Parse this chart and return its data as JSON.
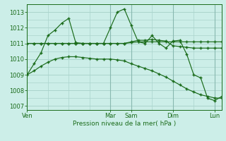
{
  "bg_color": "#cceee8",
  "grid_color": "#aad4cc",
  "vgrid_color": "#88b8b0",
  "line_color": "#1a6b1a",
  "xlabel": "Pression niveau de la mer( hPa )",
  "ylim": [
    1006.75,
    1013.5
  ],
  "yticks": [
    1007,
    1008,
    1009,
    1010,
    1011,
    1012,
    1013
  ],
  "xtick_labels": [
    "Ven",
    "Mar",
    "Sam",
    "Dim",
    "Lun"
  ],
  "xtick_positions": [
    0,
    12,
    15,
    21,
    27
  ],
  "vline_positions": [
    0,
    12,
    15,
    21,
    27
  ],
  "xlim": [
    0,
    28
  ],
  "series1": [
    1009.0,
    1009.7,
    1010.4,
    1011.5,
    1011.85,
    1012.3,
    1012.6,
    1011.05,
    1011.0,
    1011.0,
    1011.0,
    1011.0,
    1012.0,
    1013.0,
    1013.2,
    1012.15,
    1011.1,
    1011.0,
    1011.5,
    1011.0,
    1010.7,
    1011.15,
    1011.2,
    1010.3,
    1009.0,
    1008.8,
    1007.5,
    1007.35,
    1007.6
  ],
  "series2": [
    1011.0,
    1011.0,
    1011.0,
    1011.0,
    1011.0,
    1011.0,
    1011.0,
    1011.0,
    1011.0,
    1011.0,
    1011.0,
    1011.0,
    1011.0,
    1011.0,
    1011.0,
    1011.1,
    1011.2,
    1011.2,
    1011.25,
    1011.2,
    1011.15,
    1010.85,
    1010.8,
    1010.75,
    1010.7,
    1010.7,
    1010.7,
    1010.7,
    1010.7
  ],
  "series3": [
    1011.0,
    1011.0,
    1011.0,
    1011.0,
    1011.0,
    1011.0,
    1011.0,
    1011.0,
    1011.0,
    1011.0,
    1011.0,
    1011.0,
    1011.0,
    1011.0,
    1011.0,
    1011.05,
    1011.1,
    1011.1,
    1011.1,
    1011.1,
    1011.1,
    1011.1,
    1011.1,
    1011.1,
    1011.1,
    1011.1,
    1011.1,
    1011.1,
    1011.1
  ],
  "series4": [
    1009.0,
    1009.25,
    1009.55,
    1009.8,
    1010.0,
    1010.1,
    1010.15,
    1010.15,
    1010.1,
    1010.05,
    1010.0,
    1010.0,
    1010.0,
    1009.95,
    1009.88,
    1009.7,
    1009.55,
    1009.4,
    1009.25,
    1009.05,
    1008.85,
    1008.6,
    1008.35,
    1008.1,
    1007.9,
    1007.72,
    1007.62,
    1007.52,
    1007.5
  ]
}
